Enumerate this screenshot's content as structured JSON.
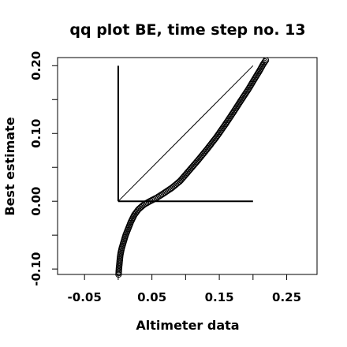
{
  "chart_data": {
    "type": "scatter",
    "title": "qq plot BE, time step no. 13",
    "xlabel": "Altimeter data",
    "ylabel": "Best estimate",
    "xlim": [
      -0.09,
      0.295
    ],
    "ylim": [
      -0.108,
      0.212
    ],
    "x_ticks": [
      -0.05,
      0.05,
      0.15,
      0.25
    ],
    "x_tick_labels": [
      "-0.05",
      "0.05",
      "0.15",
      "0.25"
    ],
    "y_ticks": [
      -0.1,
      0.0,
      0.1,
      0.2
    ],
    "y_tick_labels": [
      "-0.10",
      "0.00",
      "0.10",
      "0.20"
    ],
    "marker": "open-circle",
    "grid": false,
    "reference_lines": [
      {
        "name": "identity",
        "x": [
          0.0,
          0.2
        ],
        "y": [
          0.0,
          0.2
        ]
      },
      {
        "name": "vertical",
        "x": [
          0.0,
          0.0
        ],
        "y": [
          0.0,
          0.2
        ]
      },
      {
        "name": "horizontal",
        "x": [
          0.0,
          0.2
        ],
        "y": [
          0.0,
          0.0
        ]
      }
    ],
    "series": [
      {
        "curve": [
          [
            0.0005,
            -0.108
          ],
          [
            0.001,
            -0.1
          ],
          [
            0.002,
            -0.09
          ],
          [
            0.003,
            -0.08
          ],
          [
            0.005,
            -0.07
          ],
          [
            0.008,
            -0.06
          ],
          [
            0.011,
            -0.05
          ],
          [
            0.015,
            -0.04
          ],
          [
            0.019,
            -0.03
          ],
          [
            0.024,
            -0.02
          ],
          [
            0.03,
            -0.012
          ],
          [
            0.038,
            -0.005
          ],
          [
            0.047,
            0.0
          ],
          [
            0.057,
            0.005
          ],
          [
            0.068,
            0.012
          ],
          [
            0.08,
            0.02
          ],
          [
            0.092,
            0.03
          ],
          [
            0.105,
            0.045
          ],
          [
            0.118,
            0.06
          ],
          [
            0.132,
            0.077
          ],
          [
            0.146,
            0.095
          ],
          [
            0.16,
            0.115
          ],
          [
            0.172,
            0.133
          ],
          [
            0.183,
            0.15
          ],
          [
            0.193,
            0.165
          ],
          [
            0.202,
            0.18
          ],
          [
            0.21,
            0.193
          ],
          [
            0.215,
            0.202
          ],
          [
            0.219,
            0.208
          ]
        ],
        "n_points": 170,
        "color": "#000000"
      }
    ]
  }
}
